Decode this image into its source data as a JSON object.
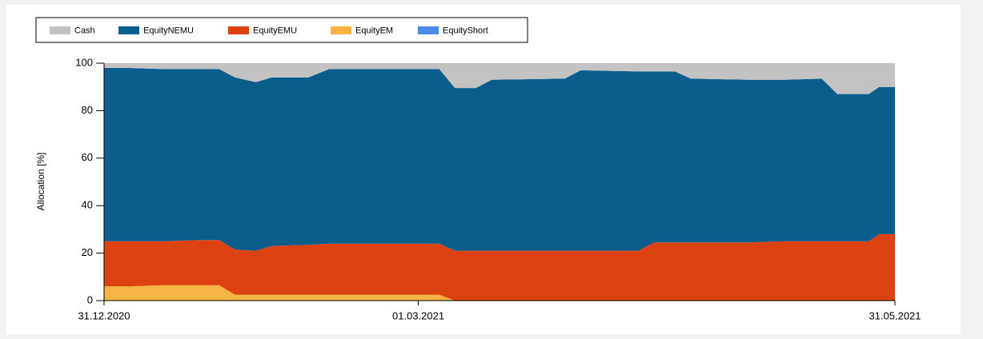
{
  "chart_data": {
    "type": "stacked_area",
    "y_label": "Allocation [%]",
    "x": [
      "2020-12-31",
      "2021-01-05",
      "2021-01-11",
      "2021-01-18",
      "2021-01-22",
      "2021-01-25",
      "2021-01-29",
      "2021-02-01",
      "2021-02-08",
      "2021-02-12",
      "2021-02-22",
      "2021-03-01",
      "2021-03-05",
      "2021-03-08",
      "2021-03-12",
      "2021-03-15",
      "2021-03-29",
      "2021-04-01",
      "2021-04-12",
      "2021-04-15",
      "2021-04-19",
      "2021-04-22",
      "2021-05-03",
      "2021-05-10",
      "2021-05-17",
      "2021-05-20",
      "2021-05-26",
      "2021-05-28",
      "2021-05-31"
    ],
    "series": [
      {
        "name": "Cash",
        "color": "#c3c3c3",
        "values": [
          2,
          2,
          2.5,
          2.5,
          2.5,
          6,
          8,
          6,
          6,
          2.5,
          2.5,
          2.5,
          2.5,
          10.5,
          10.5,
          7,
          6.5,
          3,
          3.5,
          3.5,
          3.5,
          6.5,
          7,
          7,
          6.5,
          13,
          13,
          10,
          10
        ]
      },
      {
        "name": "EquityNEMU",
        "color": "#0b5d8c",
        "values": [
          73,
          73,
          72.5,
          72,
          72,
          72.5,
          71,
          71,
          70.5,
          73.5,
          73.5,
          73.5,
          73.5,
          68.5,
          68.5,
          72,
          72.5,
          76,
          75.5,
          72,
          72,
          69,
          68.5,
          68,
          68.5,
          62,
          62,
          62,
          62
        ]
      },
      {
        "name": "EquityEMU",
        "color": "#dc4112",
        "values": [
          19,
          19,
          18.5,
          19,
          19,
          19,
          18.5,
          20.5,
          21,
          21.5,
          21.5,
          21.5,
          21.5,
          21,
          21,
          21,
          21,
          21,
          21,
          24.5,
          24.5,
          24.5,
          24.5,
          25,
          25,
          25,
          25,
          28,
          28
        ]
      },
      {
        "name": "EquityEM",
        "color": "#f7b443",
        "values": [
          6,
          6,
          6.5,
          6.5,
          6.5,
          2.5,
          2.5,
          2.5,
          2.5,
          2.5,
          2.5,
          2.5,
          2.5,
          0,
          0,
          0,
          0,
          0,
          0,
          0,
          0,
          0,
          0,
          0,
          0,
          0,
          0,
          0,
          0
        ]
      },
      {
        "name": "EquityShort",
        "color": "#4a8be8",
        "values": [
          0,
          0,
          0,
          0,
          0,
          0,
          0,
          0,
          0,
          0,
          0,
          0,
          0,
          0,
          0,
          0,
          0,
          0,
          0,
          0,
          0,
          0,
          0,
          0,
          0,
          0,
          0,
          0,
          0
        ]
      }
    ],
    "xlim": [
      "2020-12-31",
      "2021-05-31"
    ],
    "xticks": [
      {
        "value": "2020-12-31",
        "label": "31.12.2020"
      },
      {
        "value": "2021-03-01",
        "label": "01.03.2021"
      },
      {
        "value": "2021-05-31",
        "label": "31.05.2021"
      }
    ],
    "ylim": [
      0,
      100
    ],
    "yticks": [
      0,
      20,
      40,
      60,
      80,
      100
    ],
    "grid": false,
    "legend": "top"
  }
}
